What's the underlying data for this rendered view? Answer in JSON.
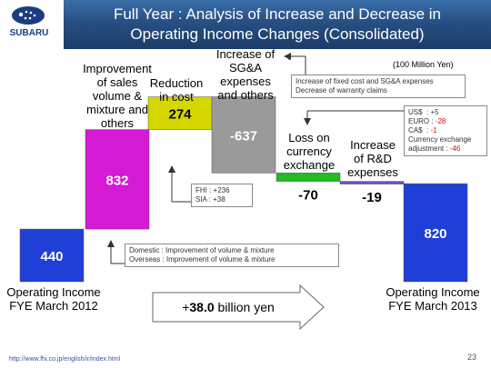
{
  "header": {
    "brand": "SUBARU",
    "title_line1": "Full Year : Analysis of Increase and Decrease in",
    "title_line2": "Operating Income Changes (Consolidated)"
  },
  "unit_label": "(100 Million Yen)",
  "chart_data": {
    "type": "bar",
    "subtype": "waterfall",
    "categories": [
      "Operating Income FYE March 2012",
      "Improvement of sales volume & mixture and others",
      "Reduction in cost",
      "Increase of SG&A expenses and others",
      "Loss on currency exchange",
      "Increase of R&D expenses",
      "Operating Income FYE March 2013"
    ],
    "values": [
      440,
      832,
      274,
      -637,
      -70,
      -19,
      820
    ],
    "value_labels": [
      "440",
      "832",
      "274",
      "-637",
      "-70",
      "-19",
      "820"
    ],
    "colors": [
      "#1f3fd6",
      "#d41ad4",
      "#d6d600",
      "#9a9a9a",
      "#22bb22",
      "#6f4fc0",
      "#1f3fd6"
    ],
    "ylim": [
      0,
      1600
    ],
    "grid": false,
    "legend": "none"
  },
  "labels": {
    "start_line1": "Operating Income",
    "start_line2": "FYE March 2012",
    "end_line1": "Operating Income",
    "end_line2": "FYE March 2013",
    "sales_line1": "Improvement",
    "sales_line2": "of sales",
    "sales_line3": "volume &",
    "sales_line4": "mixture and",
    "sales_line5": "others",
    "cost_line1": "Reduction",
    "cost_line2": "in cost",
    "sga_line1": "Increase of",
    "sga_line2": "SG&A",
    "sga_line3": "expenses",
    "sga_line4": "and others",
    "fx_line1": "Loss on",
    "fx_line2": "currency",
    "fx_line3": "exchange",
    "rd_line1": "Increase",
    "rd_line2": "of R&D",
    "rd_line3": "expenses"
  },
  "notes": {
    "sga_line1": "Increase of fixed cost and SG&A expenses",
    "sga_line2": "Decrease of warranty claims",
    "fx_line1": "US$  : +5",
    "fx_line2_label": "EURO : ",
    "fx_line2_value": "-28",
    "fx_line3_label": "CA$  : ",
    "fx_line3_value": "-1",
    "fx_line4": "Currency exchange",
    "fx_line5_label": "adjustment : ",
    "fx_line5_value": "-46",
    "cost_line1": "FHI : +236",
    "cost_line2": "SIA : +38",
    "sales_line1": "Domestic : Improvement of volume & mixture",
    "sales_line2": "Overseas : Improvement of volume & mixture"
  },
  "summary_arrow": {
    "prefix": "+",
    "amount": "38.0",
    "suffix": " billion yen"
  },
  "footer": {
    "url": "http://www.fhi.co.jp/english/ir/index.html",
    "page": "23"
  }
}
